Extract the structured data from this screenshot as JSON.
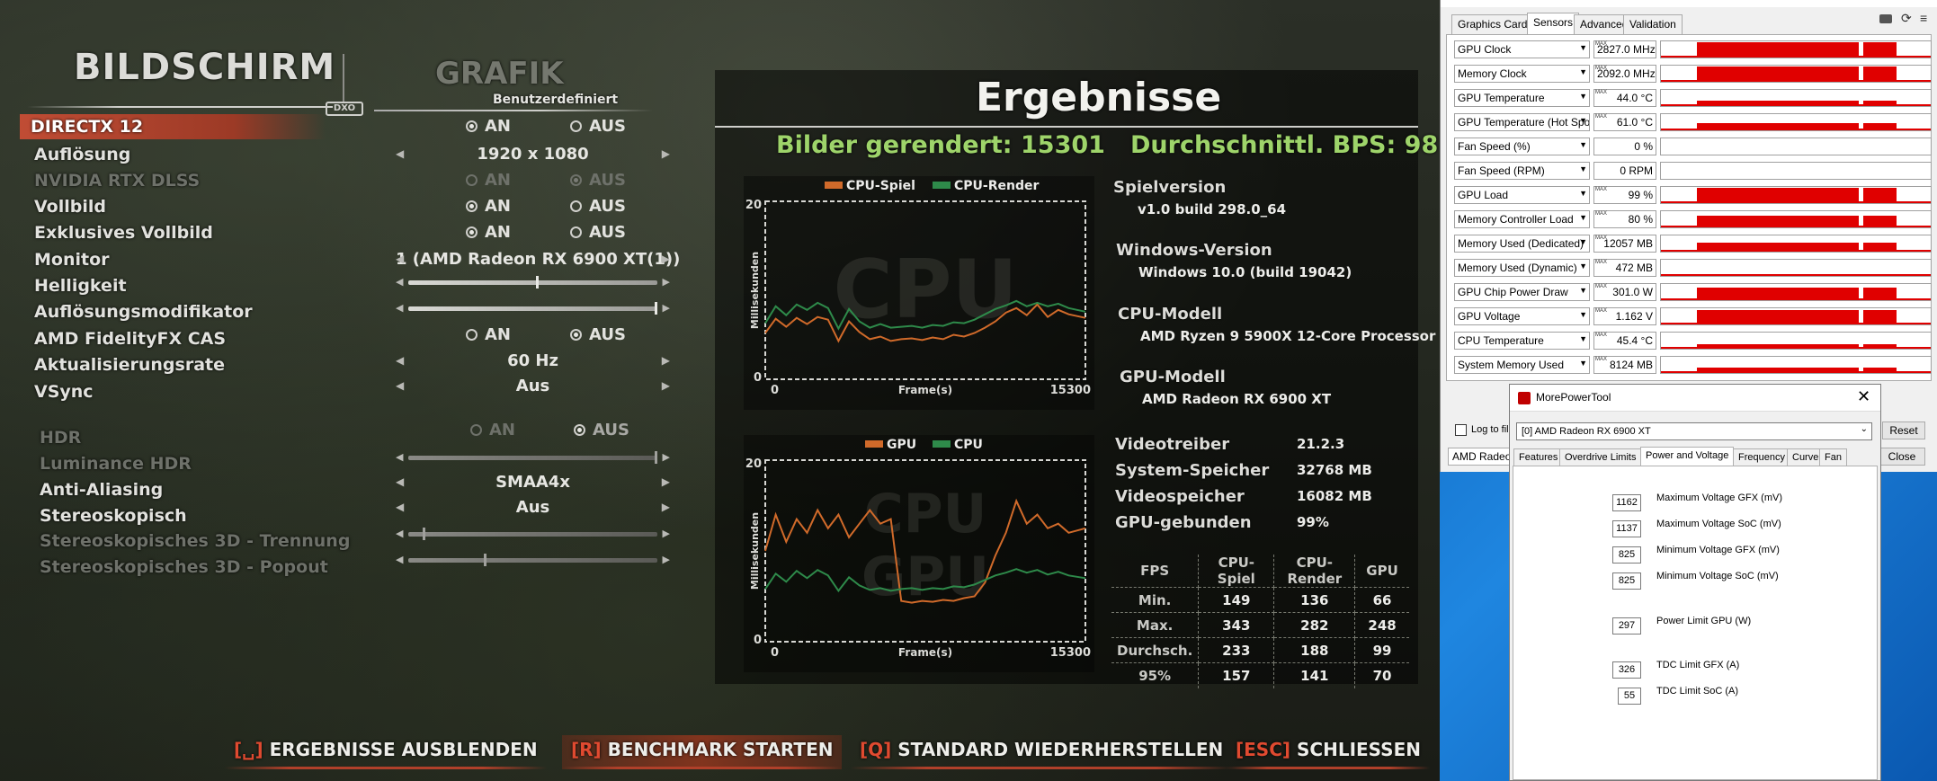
{
  "game": {
    "title": "BILDSCHIRM",
    "tab_grafik": "GRAFIK",
    "preset": "Benutzerdefiniert",
    "settings": [
      {
        "label": "DIRECTX 12",
        "on": "AN",
        "off": "AUS"
      },
      {
        "label": "Auflösung",
        "value": "1920 x 1080"
      },
      {
        "label": "NVIDIA RTX DLSS",
        "on": "AN",
        "off": "AUS"
      },
      {
        "label": "Vollbild",
        "on": "AN",
        "off": "AUS"
      },
      {
        "label": "Exklusives Vollbild",
        "on": "AN",
        "off": "AUS"
      },
      {
        "label": "Monitor",
        "value": "1 (AMD Radeon RX 6900 XT(1))"
      },
      {
        "label": "Helligkeit",
        "level": 0.5
      },
      {
        "label": "Auflösungsmodifikator",
        "level": 1.0
      },
      {
        "label": "AMD FidelityFX CAS",
        "on": "AN",
        "off": "AUS"
      },
      {
        "label": "Aktualisierungsrate",
        "value": "60 Hz"
      },
      {
        "label": "VSync",
        "value": "Aus"
      },
      {
        "label": "HDR",
        "on": "AN",
        "off": "AUS"
      },
      {
        "label": "Luminance HDR",
        "level": 1.0
      },
      {
        "label": "Anti-Aliasing",
        "value": "SMAA4x"
      },
      {
        "label": "Stereoskopisch",
        "value": "Aus"
      },
      {
        "label": "Stereoskopisches 3D - Trennung",
        "level": 0.05
      },
      {
        "label": "Stereoskopisches 3D - Popout",
        "level": 0.3
      }
    ],
    "results": {
      "title": "Ergebnisse",
      "frames_rendered": "Bilder gerendert: 15301",
      "avg_fps": "Durchschnittl. BPS: 98",
      "info": [
        {
          "label": "Spielversion",
          "value": "v1.0 build 298.0_64"
        },
        {
          "label": "Windows-Version",
          "value": "Windows 10.0 (build 19042)"
        },
        {
          "label": "CPU-Modell",
          "value": "AMD Ryzen 9 5900X 12-Core Processor"
        },
        {
          "label": "GPU-Modell",
          "value": "AMD Radeon RX 6900 XT"
        }
      ],
      "specs": [
        {
          "label": "Videotreiber",
          "value": "21.2.3"
        },
        {
          "label": "System-Speicher",
          "value": "32768 MB"
        },
        {
          "label": "Videospeicher",
          "value": "16082 MB"
        },
        {
          "label": "GPU-gebunden",
          "value": "99%"
        }
      ],
      "table": {
        "headers": [
          "FPS",
          "CPU-Spiel",
          "CPU-Render",
          "GPU"
        ],
        "rows": [
          [
            "Min.",
            "149",
            "136",
            "66"
          ],
          [
            "Max.",
            "343",
            "282",
            "248"
          ],
          [
            "Durchsch.",
            "233",
            "188",
            "99"
          ],
          [
            "95%",
            "157",
            "141",
            "70"
          ]
        ]
      }
    },
    "buttons": [
      {
        "key": "[␣]",
        "label": "ERGEBNISSE AUSBLENDEN"
      },
      {
        "key": "[R]",
        "label": "BENCHMARK STARTEN"
      },
      {
        "key": "[Q]",
        "label": "STANDARD WIEDERHERSTELLEN"
      },
      {
        "key": "[ESC]",
        "label": "SCHLIESSEN"
      }
    ]
  },
  "chart_data": [
    {
      "type": "line",
      "watermark": "CPU",
      "xlabel": "Frame(s)",
      "ylabel": "Millisekunden",
      "xlim": [
        0,
        15300
      ],
      "ylim": [
        0,
        20
      ],
      "x_ticks": [
        "0",
        "15300"
      ],
      "y_ticks": [
        "20",
        "0"
      ],
      "series": [
        {
          "name": "CPU-Spiel",
          "color": "#d06a2a",
          "x": [
            0,
            500,
            1000,
            1500,
            2000,
            2500,
            3000,
            3500,
            4000,
            4500,
            5000,
            5500,
            6000,
            6500,
            7000,
            7500,
            8000,
            8500,
            9000,
            9500,
            10000,
            10500,
            11000,
            11500,
            12000,
            12500,
            13000,
            13500,
            14000,
            14500,
            15300
          ],
          "y": [
            5.2,
            6.8,
            5.9,
            6.9,
            6.2,
            7.0,
            6.7,
            4.3,
            6.5,
            5.3,
            4.5,
            4.8,
            4.3,
            4.5,
            4.6,
            4.4,
            4.7,
            4.5,
            5.0,
            4.8,
            5.2,
            5.8,
            6.5,
            7.5,
            8.0,
            7.2,
            8.4,
            7.0,
            7.8,
            7.3,
            6.9
          ]
        },
        {
          "name": "CPU-Render",
          "color": "#2e8a4a",
          "x": [
            0,
            500,
            1000,
            1500,
            2000,
            2500,
            3000,
            3500,
            4000,
            4500,
            5000,
            5500,
            6000,
            6500,
            7000,
            7500,
            8000,
            8500,
            9000,
            9500,
            10000,
            10500,
            11000,
            11500,
            12000,
            12500,
            13000,
            13500,
            14000,
            14500,
            15300
          ],
          "y": [
            6.3,
            8.2,
            7.2,
            8.4,
            7.8,
            8.6,
            8.0,
            5.7,
            7.9,
            6.5,
            5.8,
            6.2,
            5.8,
            5.9,
            6.0,
            5.8,
            6.1,
            6.0,
            6.4,
            6.3,
            6.7,
            7.3,
            7.9,
            8.3,
            8.8,
            8.2,
            8.6,
            8.2,
            8.5,
            8.0,
            7.6
          ]
        }
      ]
    },
    {
      "type": "line",
      "watermark": "CPU GPU",
      "xlabel": "Frame(s)",
      "ylabel": "Millisekunden",
      "xlim": [
        0,
        15300
      ],
      "ylim": [
        0,
        20
      ],
      "x_ticks": [
        "0",
        "15300"
      ],
      "y_ticks": [
        "20",
        "0"
      ],
      "series": [
        {
          "name": "GPU",
          "color": "#d06a2a",
          "x": [
            0,
            500,
            1000,
            1500,
            2000,
            2500,
            3000,
            3500,
            4000,
            4500,
            5000,
            5500,
            6000,
            6500,
            7000,
            7500,
            8000,
            8500,
            9000,
            9500,
            10000,
            10500,
            11000,
            11500,
            12000,
            12500,
            13000,
            13500,
            14000,
            14500,
            15300
          ],
          "y": [
            10,
            14,
            11,
            13.5,
            12,
            14.5,
            12.5,
            14,
            11.5,
            13,
            14.5,
            13,
            13.5,
            4.5,
            4.3,
            4.5,
            4.4,
            4.6,
            4.5,
            4.8,
            5.0,
            6.5,
            9.5,
            12,
            15.5,
            13,
            14,
            12.5,
            13,
            12,
            12.5
          ]
        },
        {
          "name": "CPU",
          "color": "#2e8a4a",
          "x": [
            0,
            500,
            1000,
            1500,
            2000,
            2500,
            3000,
            3500,
            4000,
            4500,
            5000,
            5500,
            6000,
            6500,
            7000,
            7500,
            8000,
            8500,
            9000,
            9500,
            10000,
            10500,
            11000,
            11500,
            12000,
            12500,
            13000,
            13500,
            14000,
            14500,
            15300
          ],
          "y": [
            5.8,
            7.5,
            6.6,
            7.8,
            7.0,
            7.9,
            7.3,
            5.6,
            7.1,
            6.2,
            5.7,
            5.9,
            5.6,
            5.8,
            5.9,
            5.7,
            5.9,
            5.8,
            6.1,
            6.0,
            6.3,
            6.8,
            7.3,
            7.6,
            8.0,
            7.6,
            7.9,
            7.4,
            7.7,
            7.3,
            7.0
          ]
        }
      ]
    }
  ],
  "gpuz": {
    "tabs": [
      "Graphics Card",
      "Sensors",
      "Advanced",
      "Validation"
    ],
    "sensors": [
      {
        "name": "GPU Clock",
        "value": "2827.0 MHz",
        "max": true,
        "level": 0.85
      },
      {
        "name": "Memory Clock",
        "value": "2092.0 MHz",
        "max": true,
        "level": 0.85
      },
      {
        "name": "GPU Temperature",
        "value": "44.0 °C",
        "max": true,
        "level": 0.3
      },
      {
        "name": "GPU Temperature (Hot Spot)",
        "value": "61.0 °C",
        "max": true,
        "level": 0.4
      },
      {
        "name": "Fan Speed (%)",
        "value": "0 %",
        "max": false,
        "level": 0
      },
      {
        "name": "Fan Speed (RPM)",
        "value": "0 RPM",
        "max": false,
        "level": 0
      },
      {
        "name": "GPU Load",
        "value": "99 %",
        "max": true,
        "level": 0.85
      },
      {
        "name": "Memory Controller Load",
        "value": "80 %",
        "max": true,
        "level": 0.65
      },
      {
        "name": "Memory Used (Dedicated)",
        "value": "12057 MB",
        "max": true,
        "level": 0.5
      },
      {
        "name": "Memory Used (Dynamic)",
        "value": "472 MB",
        "max": true,
        "level": 0.1
      },
      {
        "name": "GPU Chip Power Draw",
        "value": "301.0 W",
        "max": true,
        "level": 0.7
      },
      {
        "name": "GPU Voltage",
        "value": "1.162 V",
        "max": true,
        "level": 0.8
      },
      {
        "name": "CPU Temperature",
        "value": "45.4 °C",
        "max": true,
        "level": 0.25
      },
      {
        "name": "System Memory Used",
        "value": "8124 MB",
        "max": true,
        "level": 0.3
      }
    ],
    "log_label": "Log to file",
    "reset_label": "Reset",
    "close_label": "Close",
    "device_label": "AMD Radeon"
  },
  "mpt": {
    "title": "MorePowerTool",
    "device": "[0] AMD Radeon RX 6900 XT",
    "tabs": [
      "Features",
      "Overdrive Limits",
      "Power and Voltage",
      "Frequency",
      "Curve",
      "Fan"
    ],
    "fields": [
      {
        "value": "1162",
        "label": "Maximum Voltage GFX (mV)"
      },
      {
        "value": "1137",
        "label": "Maximum Voltage SoC (mV)"
      },
      {
        "value": "825",
        "label": "Minimum Voltage GFX (mV)"
      },
      {
        "value": "825",
        "label": "Minimum Voltage SoC (mV)"
      },
      {
        "value": "297",
        "label": "Power Limit GPU (W)"
      },
      {
        "value": "326",
        "label": "TDC Limit GFX (A)"
      },
      {
        "value": "55",
        "label": "TDC Limit SoC (A)"
      }
    ]
  }
}
